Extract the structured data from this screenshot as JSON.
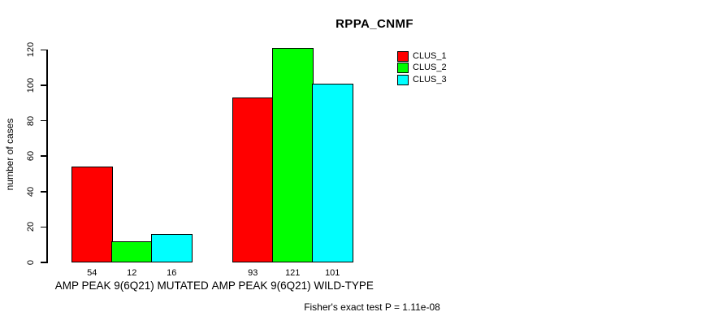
{
  "chart_data": {
    "type": "bar",
    "title": "RPPA_CNMF",
    "xlabel": "",
    "ylabel": "number of cases",
    "categories": [
      "AMP PEAK 9(6Q21) MUTATED",
      "AMP PEAK 9(6Q21) WILD-TYPE"
    ],
    "series": [
      {
        "name": "CLUS_1",
        "color": "#FF0000",
        "values": [
          54,
          93
        ]
      },
      {
        "name": "CLUS_2",
        "color": "#00FF00",
        "values": [
          12,
          121
        ]
      },
      {
        "name": "CLUS_3",
        "color": "#00FFFF",
        "values": [
          16,
          101
        ]
      }
    ],
    "bar_value_labels": [
      [
        54,
        12,
        16
      ],
      [
        93,
        121,
        101
      ]
    ],
    "yticks": [
      0,
      20,
      40,
      60,
      80,
      100,
      120
    ],
    "ylim": [
      0,
      120
    ],
    "grid": false,
    "legend_position": "top-right",
    "legend_entries": [
      "CLUS_1",
      "CLUS_2",
      "CLUS_3"
    ],
    "annotation": "Fisher's exact test P = 1.11e-08",
    "background_color": "#FFFFFF",
    "axis_color": "#000000",
    "bar_border_color": "#000000"
  }
}
